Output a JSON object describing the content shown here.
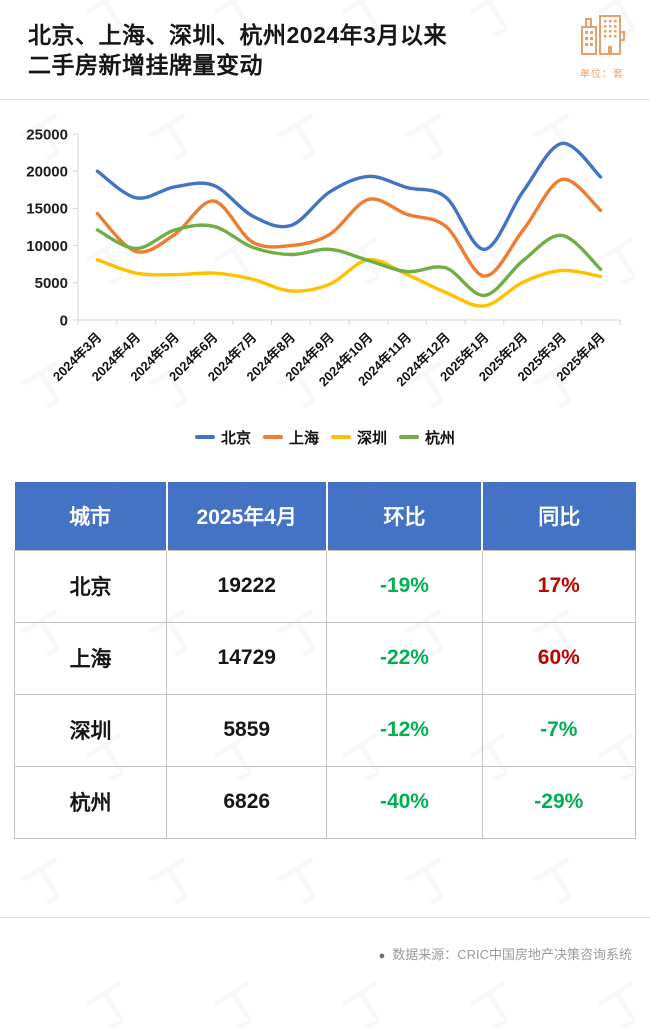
{
  "header": {
    "title_line1": "北京、上海、深圳、杭州2024年3月以来",
    "title_line2": "二手房新增挂牌量变动",
    "unit_label": "单位：套"
  },
  "colors": {
    "beijing_blue": "#4472C4",
    "shanghai_orange": "#ED7D31",
    "shenzhen_yellow": "#FFC000",
    "hangzhou_green": "#70AD47",
    "table_header_bg": "#4472C4",
    "increase_red": "#C00000",
    "decrease_green": "#00B050",
    "accent_orange": "#E9A06B"
  },
  "chart_data": {
    "type": "line",
    "x": [
      "2024年3月",
      "2024年4月",
      "2024年5月",
      "2024年6月",
      "2024年7月",
      "2024年8月",
      "2024年9月",
      "2024年10月",
      "2024年11月",
      "2024年12月",
      "2025年1月",
      "2025年2月",
      "2025年3月",
      "2025年4月"
    ],
    "series": [
      {
        "name": "北京",
        "color": "#4472C4",
        "values": [
          20000,
          16429,
          17900,
          18100,
          14000,
          12700,
          17200,
          19300,
          17800,
          16500,
          9500,
          17300,
          23731,
          19222
        ]
      },
      {
        "name": "上海",
        "color": "#ED7D31",
        "values": [
          14300,
          9206,
          11500,
          16000,
          10500,
          10000,
          11500,
          16200,
          14200,
          12600,
          5900,
          12100,
          18883,
          14729
        ]
      },
      {
        "name": "深圳",
        "color": "#FFC000",
        "values": [
          8100,
          6300,
          6100,
          6300,
          5500,
          3900,
          4800,
          8100,
          6100,
          3700,
          1900,
          5100,
          6658,
          5859
        ]
      },
      {
        "name": "杭州",
        "color": "#70AD47",
        "values": [
          12100,
          9614,
          12100,
          12600,
          9800,
          8800,
          9500,
          8000,
          6500,
          7000,
          3300,
          8000,
          11377,
          6826
        ]
      }
    ],
    "ylim": [
      0,
      25000
    ],
    "yticks": [
      0,
      5000,
      10000,
      15000,
      20000,
      25000
    ],
    "grid": false,
    "legend_position": "bottom",
    "smooth": true
  },
  "table": {
    "columns": [
      "城市",
      "2025年4月",
      "环比",
      "同比"
    ],
    "rows": [
      {
        "city": "北京",
        "value": "19222",
        "mom": "-19%",
        "mom_color": "#00B050",
        "yoy": "17%",
        "yoy_color": "#C00000"
      },
      {
        "city": "上海",
        "value": "14729",
        "mom": "-22%",
        "mom_color": "#00B050",
        "yoy": "60%",
        "yoy_color": "#C00000"
      },
      {
        "city": "深圳",
        "value": "5859",
        "mom": "-12%",
        "mom_color": "#00B050",
        "yoy": "-7%",
        "yoy_color": "#00B050"
      },
      {
        "city": "杭州",
        "value": "6826",
        "mom": "-40%",
        "mom_color": "#00B050",
        "yoy": "-29%",
        "yoy_color": "#00B050"
      }
    ]
  },
  "footer": {
    "bullet": "●",
    "source": "数据来源：CRIC中国房地产决策咨询系统"
  },
  "decor": {
    "watermark_glyph": "丁"
  }
}
